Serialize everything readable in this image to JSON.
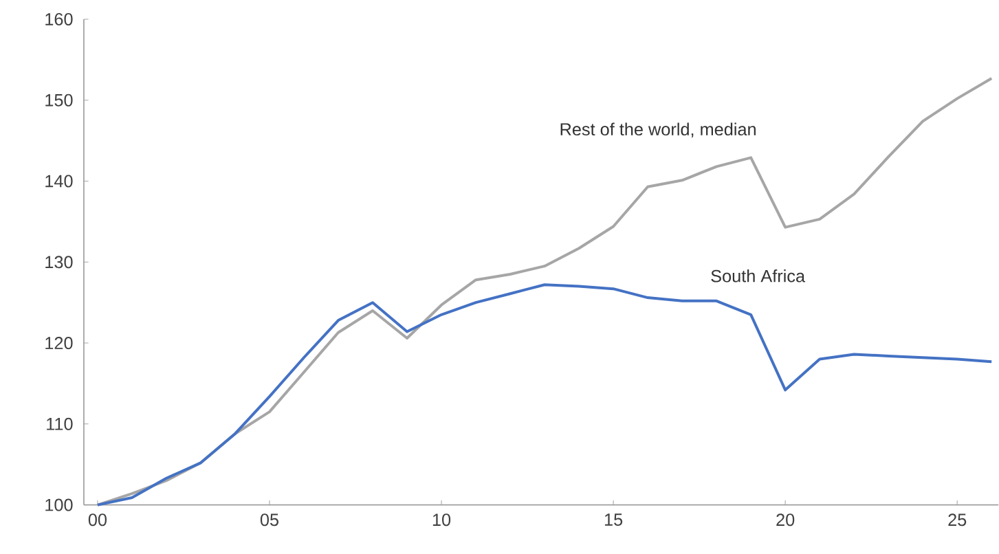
{
  "chart_data": {
    "type": "line",
    "x": [
      0,
      1,
      2,
      3,
      4,
      5,
      6,
      7,
      8,
      9,
      10,
      11,
      12,
      13,
      14,
      15,
      16,
      17,
      18,
      19,
      20,
      21,
      22,
      23,
      24,
      25,
      26
    ],
    "series": [
      {
        "name": "Rest of the world, median",
        "color": "#a6a6a6",
        "values": [
          100,
          101.4,
          103.0,
          105.2,
          108.8,
          111.5,
          116.4,
          121.3,
          124.0,
          120.6,
          124.7,
          127.8,
          128.5,
          129.5,
          131.7,
          134.4,
          139.3,
          140.1,
          141.8,
          142.9,
          134.3,
          135.3,
          138.4,
          143.0,
          147.4,
          150.2,
          152.7
        ]
      },
      {
        "name": "South Africa",
        "color": "#4472c4",
        "values": [
          100,
          100.9,
          103.3,
          105.2,
          108.8,
          113.4,
          118.2,
          122.8,
          125.0,
          121.4,
          123.5,
          125.0,
          126.1,
          127.2,
          127.0,
          126.7,
          125.6,
          125.2,
          125.2,
          123.5,
          114.2,
          118.0,
          118.6,
          118.4,
          118.2,
          118.0,
          117.7
        ]
      }
    ],
    "xlim": [
      -0.4,
      26.2
    ],
    "xticks": [
      {
        "value": 0,
        "label": "00"
      },
      {
        "value": 5,
        "label": "05"
      },
      10,
      15,
      20,
      25
    ],
    "ylim": [
      100,
      160
    ],
    "yticks": [
      100,
      110,
      120,
      130,
      140,
      150,
      160
    ],
    "grid": false,
    "legend": false,
    "marker": "none",
    "line_style": "solid"
  }
}
